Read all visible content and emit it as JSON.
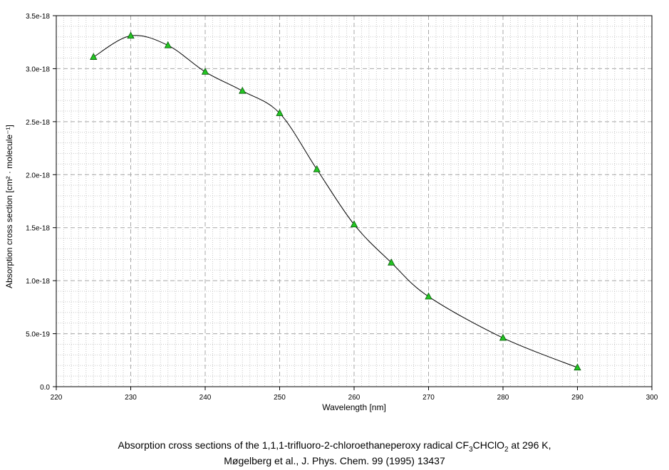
{
  "chart_data": {
    "type": "line",
    "title": "",
    "xlabel": "Wavelength [nm]",
    "ylabel": "Absorption cross section [cm² · molecule⁻¹]",
    "xlim": [
      220,
      300
    ],
    "ylim": [
      0,
      3.5e-18
    ],
    "x_ticks": [
      "220",
      "230",
      "240",
      "250",
      "260",
      "270",
      "280",
      "290",
      "300"
    ],
    "y_ticks": [
      "0.0",
      "5.0e-19",
      "1.0e-18",
      "1.5e-18",
      "2.0e-18",
      "2.5e-18",
      "3.0e-18",
      "3.5e-18"
    ],
    "grid": true,
    "marker": "triangle",
    "marker_color": "#22c422",
    "line_color": "#000000",
    "series": [
      {
        "x": [
          225,
          230,
          235,
          240,
          245,
          250,
          255,
          260,
          265,
          270,
          280,
          290
        ],
        "y": [
          3.11e-18,
          3.31e-18,
          3.22e-18,
          2.97e-18,
          2.79e-18,
          2.58e-18,
          2.05e-18,
          1.53e-18,
          1.17e-18,
          8.5e-19,
          4.6e-19,
          1.8e-19
        ]
      }
    ]
  },
  "caption": {
    "line1_pre": "Absorption cross sections of the 1,1,1-trifluoro-2-chloroethaneperoxy radical CF",
    "line1_sub1": "3",
    "line1_mid": "CHClO",
    "line1_sub2": "2",
    "line1_post": " at 296 K,",
    "line2": "Møgelberg et al., J. Phys. Chem. 99 (1995) 13437"
  }
}
